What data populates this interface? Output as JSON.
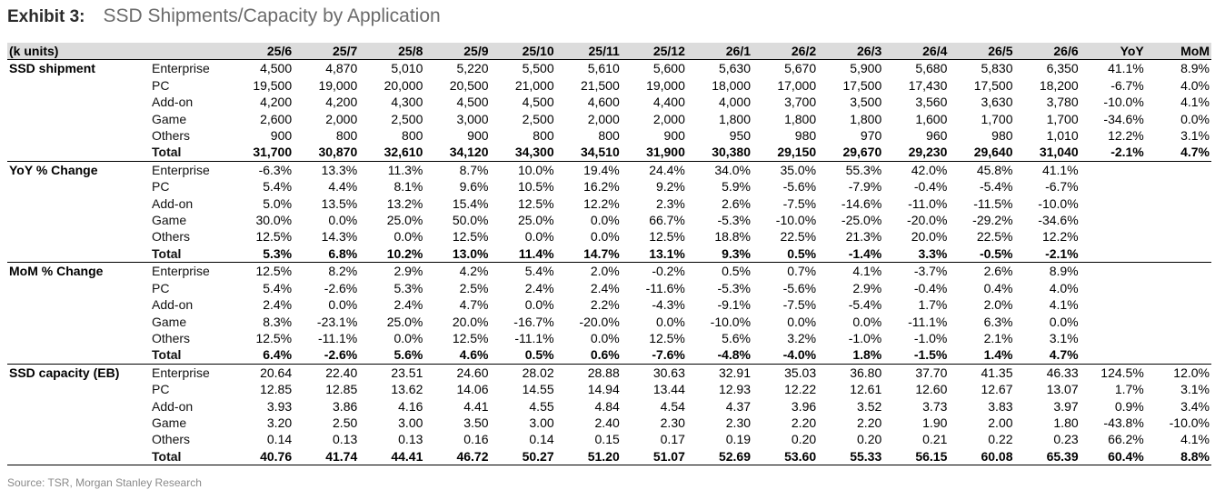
{
  "header": {
    "exhibit": "Exhibit 3:",
    "title": "SSD Shipments/Capacity by Application"
  },
  "table": {
    "unit_label": "(k units)",
    "columns": [
      "25/6",
      "25/7",
      "25/8",
      "25/9",
      "25/10",
      "25/11",
      "25/12",
      "26/1",
      "26/2",
      "26/3",
      "26/4",
      "26/5",
      "26/6",
      "YoY",
      "MoM"
    ],
    "sections": [
      {
        "name": "SSD shipment",
        "rows": [
          {
            "label": "Enterprise",
            "values": [
              "4,500",
              "4,870",
              "5,010",
              "5,220",
              "5,500",
              "5,610",
              "5,600",
              "5,630",
              "5,670",
              "5,900",
              "5,680",
              "5,830",
              "6,350",
              "41.1%",
              "8.9%"
            ]
          },
          {
            "label": "PC",
            "values": [
              "19,500",
              "19,000",
              "20,000",
              "20,500",
              "21,000",
              "21,500",
              "19,000",
              "18,000",
              "17,000",
              "17,500",
              "17,430",
              "17,500",
              "18,200",
              "-6.7%",
              "4.0%"
            ]
          },
          {
            "label": "Add-on",
            "values": [
              "4,200",
              "4,200",
              "4,300",
              "4,500",
              "4,500",
              "4,600",
              "4,400",
              "4,000",
              "3,700",
              "3,500",
              "3,560",
              "3,630",
              "3,780",
              "-10.0%",
              "4.1%"
            ]
          },
          {
            "label": "Game",
            "values": [
              "2,600",
              "2,000",
              "2,500",
              "3,000",
              "2,500",
              "2,000",
              "2,000",
              "1,800",
              "1,800",
              "1,800",
              "1,600",
              "1,700",
              "1,700",
              "-34.6%",
              "0.0%"
            ]
          },
          {
            "label": "Others",
            "values": [
              "900",
              "800",
              "800",
              "900",
              "800",
              "800",
              "900",
              "950",
              "980",
              "970",
              "960",
              "980",
              "1,010",
              "12.2%",
              "3.1%"
            ]
          },
          {
            "label": "Total",
            "values": [
              "31,700",
              "30,870",
              "32,610",
              "34,120",
              "34,300",
              "34,510",
              "31,900",
              "30,380",
              "29,150",
              "29,670",
              "29,230",
              "29,640",
              "31,040",
              "-2.1%",
              "4.7%"
            ]
          }
        ]
      },
      {
        "name": "YoY % Change",
        "rows": [
          {
            "label": "Enterprise",
            "values": [
              "-6.3%",
              "13.3%",
              "11.3%",
              "8.7%",
              "10.0%",
              "19.4%",
              "24.4%",
              "34.0%",
              "35.0%",
              "55.3%",
              "42.0%",
              "45.8%",
              "41.1%",
              "",
              ""
            ]
          },
          {
            "label": "PC",
            "values": [
              "5.4%",
              "4.4%",
              "8.1%",
              "9.6%",
              "10.5%",
              "16.2%",
              "9.2%",
              "5.9%",
              "-5.6%",
              "-7.9%",
              "-0.4%",
              "-5.4%",
              "-6.7%",
              "",
              ""
            ]
          },
          {
            "label": "Add-on",
            "values": [
              "5.0%",
              "13.5%",
              "13.2%",
              "15.4%",
              "12.5%",
              "12.2%",
              "2.3%",
              "2.6%",
              "-7.5%",
              "-14.6%",
              "-11.0%",
              "-11.5%",
              "-10.0%",
              "",
              ""
            ]
          },
          {
            "label": "Game",
            "values": [
              "30.0%",
              "0.0%",
              "25.0%",
              "50.0%",
              "25.0%",
              "0.0%",
              "66.7%",
              "-5.3%",
              "-10.0%",
              "-25.0%",
              "-20.0%",
              "-29.2%",
              "-34.6%",
              "",
              ""
            ]
          },
          {
            "label": "Others",
            "values": [
              "12.5%",
              "14.3%",
              "0.0%",
              "12.5%",
              "0.0%",
              "0.0%",
              "12.5%",
              "18.8%",
              "22.5%",
              "21.3%",
              "20.0%",
              "22.5%",
              "12.2%",
              "",
              ""
            ]
          },
          {
            "label": "Total",
            "values": [
              "5.3%",
              "6.8%",
              "10.2%",
              "13.0%",
              "11.4%",
              "14.7%",
              "13.1%",
              "9.3%",
              "0.5%",
              "-1.4%",
              "3.3%",
              "-0.5%",
              "-2.1%",
              "",
              ""
            ]
          }
        ]
      },
      {
        "name": "MoM % Change",
        "rows": [
          {
            "label": "Enterprise",
            "values": [
              "12.5%",
              "8.2%",
              "2.9%",
              "4.2%",
              "5.4%",
              "2.0%",
              "-0.2%",
              "0.5%",
              "0.7%",
              "4.1%",
              "-3.7%",
              "2.6%",
              "8.9%",
              "",
              ""
            ]
          },
          {
            "label": "PC",
            "values": [
              "5.4%",
              "-2.6%",
              "5.3%",
              "2.5%",
              "2.4%",
              "2.4%",
              "-11.6%",
              "-5.3%",
              "-5.6%",
              "2.9%",
              "-0.4%",
              "0.4%",
              "4.0%",
              "",
              ""
            ]
          },
          {
            "label": "Add-on",
            "values": [
              "2.4%",
              "0.0%",
              "2.4%",
              "4.7%",
              "0.0%",
              "2.2%",
              "-4.3%",
              "-9.1%",
              "-7.5%",
              "-5.4%",
              "1.7%",
              "2.0%",
              "4.1%",
              "",
              ""
            ]
          },
          {
            "label": "Game",
            "values": [
              "8.3%",
              "-23.1%",
              "25.0%",
              "20.0%",
              "-16.7%",
              "-20.0%",
              "0.0%",
              "-10.0%",
              "0.0%",
              "0.0%",
              "-11.1%",
              "6.3%",
              "0.0%",
              "",
              ""
            ]
          },
          {
            "label": "Others",
            "values": [
              "12.5%",
              "-11.1%",
              "0.0%",
              "12.5%",
              "-11.1%",
              "0.0%",
              "12.5%",
              "5.6%",
              "3.2%",
              "-1.0%",
              "-1.0%",
              "2.1%",
              "3.1%",
              "",
              ""
            ]
          },
          {
            "label": "Total",
            "values": [
              "6.4%",
              "-2.6%",
              "5.6%",
              "4.6%",
              "0.5%",
              "0.6%",
              "-7.6%",
              "-4.8%",
              "-4.0%",
              "1.8%",
              "-1.5%",
              "1.4%",
              "4.7%",
              "",
              ""
            ]
          }
        ]
      },
      {
        "name": "SSD capacity (EB)",
        "rows": [
          {
            "label": "Enterprise",
            "values": [
              "20.64",
              "22.40",
              "23.51",
              "24.60",
              "28.02",
              "28.88",
              "30.63",
              "32.91",
              "35.03",
              "36.80",
              "37.70",
              "41.35",
              "46.33",
              "124.5%",
              "12.0%"
            ]
          },
          {
            "label": "PC",
            "values": [
              "12.85",
              "12.85",
              "13.62",
              "14.06",
              "14.55",
              "14.94",
              "13.44",
              "12.93",
              "12.22",
              "12.61",
              "12.60",
              "12.67",
              "13.07",
              "1.7%",
              "3.1%"
            ]
          },
          {
            "label": "Add-on",
            "values": [
              "3.93",
              "3.86",
              "4.16",
              "4.41",
              "4.55",
              "4.84",
              "4.54",
              "4.37",
              "3.96",
              "3.52",
              "3.73",
              "3.83",
              "3.97",
              "0.9%",
              "3.4%"
            ]
          },
          {
            "label": "Game",
            "values": [
              "3.20",
              "2.50",
              "3.00",
              "3.50",
              "3.00",
              "2.40",
              "2.30",
              "2.30",
              "2.20",
              "2.20",
              "1.90",
              "2.00",
              "1.80",
              "-43.8%",
              "-10.0%"
            ]
          },
          {
            "label": "Others",
            "values": [
              "0.14",
              "0.13",
              "0.13",
              "0.16",
              "0.14",
              "0.15",
              "0.17",
              "0.19",
              "0.20",
              "0.20",
              "0.21",
              "0.22",
              "0.23",
              "66.2%",
              "4.1%"
            ]
          },
          {
            "label": "Total",
            "values": [
              "40.76",
              "41.74",
              "44.41",
              "46.72",
              "50.27",
              "51.20",
              "51.07",
              "52.69",
              "53.60",
              "55.33",
              "56.15",
              "60.08",
              "65.39",
              "60.4%",
              "8.8%"
            ]
          }
        ]
      }
    ]
  },
  "footer": {
    "source": "Source: TSR, Morgan Stanley Research"
  }
}
